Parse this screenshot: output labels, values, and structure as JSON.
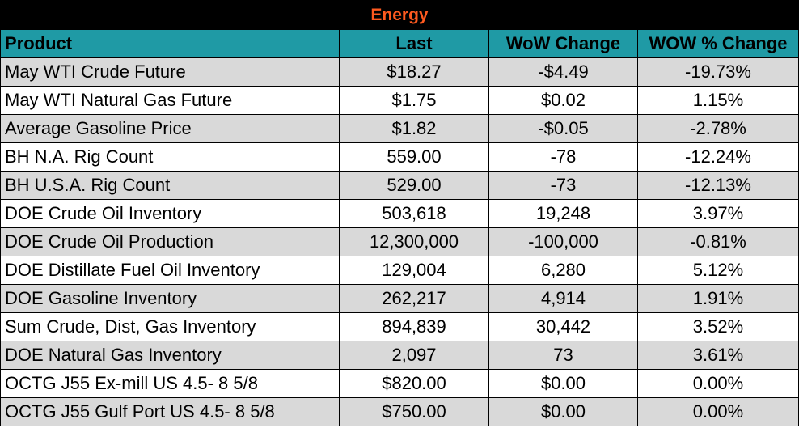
{
  "title": "Energy",
  "colors": {
    "title_bg": "#000000",
    "title_text": "#ff5a1f",
    "header_bg": "#1f9aa5",
    "shade_row": "#d9d9d9"
  },
  "headers": {
    "product": "Product",
    "last": "Last",
    "wow": "WoW Change",
    "pct": "WOW % Change"
  },
  "rows": [
    {
      "product": "May WTI Crude Future",
      "last": "$18.27",
      "wow": "-$4.49",
      "pct": "-19.73%"
    },
    {
      "product": "May WTI Natural Gas Future",
      "last": "$1.75",
      "wow": "$0.02",
      "pct": "1.15%"
    },
    {
      "product": "Average Gasoline Price",
      "last": "$1.82",
      "wow": "-$0.05",
      "pct": "-2.78%"
    },
    {
      "product": "BH N.A. Rig Count",
      "last": "559.00",
      "wow": "-78",
      "pct": "-12.24%"
    },
    {
      "product": "BH U.S.A. Rig Count",
      "last": "529.00",
      "wow": "-73",
      "pct": "-12.13%"
    },
    {
      "product": "DOE Crude Oil Inventory",
      "last": "503,618",
      "wow": "19,248",
      "pct": "3.97%"
    },
    {
      "product": "DOE Crude Oil Production",
      "last": "12,300,000",
      "wow": "-100,000",
      "pct": "-0.81%"
    },
    {
      "product": "DOE Distillate Fuel Oil Inventory",
      "last": "129,004",
      "wow": "6,280",
      "pct": "5.12%"
    },
    {
      "product": "DOE Gasoline Inventory",
      "last": "262,217",
      "wow": "4,914",
      "pct": "1.91%"
    },
    {
      "product": "Sum Crude, Dist, Gas Inventory",
      "last": "894,839",
      "wow": "30,442",
      "pct": "3.52%"
    },
    {
      "product": "DOE Natural Gas Inventory",
      "last": "2,097",
      "wow": "73",
      "pct": "3.61%"
    },
    {
      "product": "OCTG J55 Ex-mill US 4.5- 8 5/8",
      "last": "$820.00",
      "wow": "$0.00",
      "pct": "0.00%"
    },
    {
      "product": "OCTG J55 Gulf Port US 4.5- 8 5/8",
      "last": "$750.00",
      "wow": "$0.00",
      "pct": "0.00%"
    }
  ]
}
